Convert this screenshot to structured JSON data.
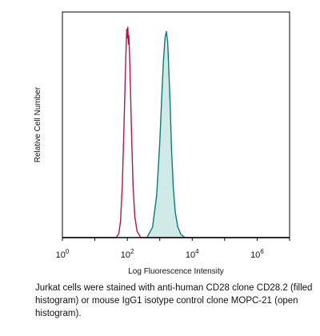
{
  "chart_data": {
    "type": "area",
    "title": "",
    "xlabel": "Log Fluorescence Intensity",
    "ylabel": "Relative Cell Number",
    "xscale": "log",
    "xlim": [
      1,
      10000000
    ],
    "ylim": [
      0,
      1
    ],
    "grid": false,
    "legend": "none",
    "x_ticks": [
      {
        "base": "10",
        "exp": "0",
        "value": 1
      },
      {
        "base": "10",
        "exp": "2",
        "value": 100
      },
      {
        "base": "10",
        "exp": "4",
        "value": 10000
      },
      {
        "base": "10",
        "exp": "6",
        "value": 1000000
      }
    ],
    "series": [
      {
        "style": "open",
        "color": "#b0144e",
        "x": [
          1,
          45,
          55,
          62,
          70,
          78,
          85,
          90,
          93,
          96,
          100,
          104,
          108,
          112,
          118,
          125,
          135,
          150,
          170,
          200,
          260,
          10000000
        ],
        "y": [
          0,
          0,
          0.02,
          0.08,
          0.25,
          0.5,
          0.72,
          0.86,
          0.93,
          0.99,
          0.95,
          1.0,
          0.92,
          0.96,
          0.85,
          0.7,
          0.5,
          0.25,
          0.1,
          0.03,
          0,
          0
        ]
      },
      {
        "style": "filled",
        "color": "#0e7a78",
        "fill": "#cfe9e6",
        "x": [
          1,
          400,
          600,
          800,
          1000,
          1150,
          1300,
          1450,
          1600,
          1750,
          1900,
          2100,
          2300,
          2600,
          3000,
          3600,
          4500,
          6000,
          10000000
        ],
        "y": [
          0,
          0,
          0.05,
          0.2,
          0.45,
          0.67,
          0.84,
          0.95,
          0.98,
          0.93,
          0.8,
          0.62,
          0.42,
          0.24,
          0.12,
          0.05,
          0.015,
          0,
          0
        ]
      }
    ]
  },
  "caption": "Jurkat cells were stained with anti-human CD28 clone CD28.2 (filled histogram) or mouse IgG1 isotype control clone MOPC-21 (open histogram)."
}
